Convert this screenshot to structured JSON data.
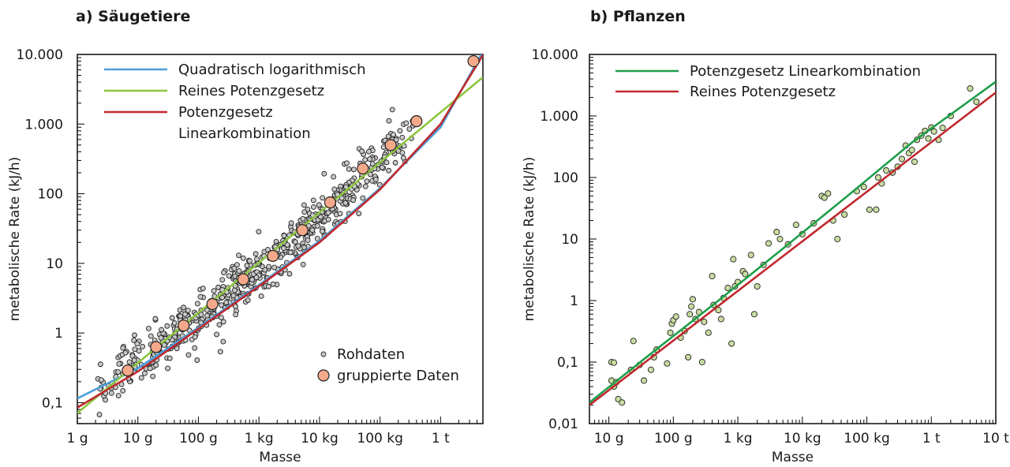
{
  "chart_data": [
    {
      "id": "a",
      "type": "scatter",
      "title": "a) Säugetiere",
      "xlabel": "Masse",
      "ylabel": "metabolische Rate  (kJ/h)",
      "x_scale": "log",
      "y_scale": "log",
      "x_unit": "g",
      "y_unit": "kJ/h",
      "xlim": [
        1,
        5000000
      ],
      "ylim": [
        0.05,
        10000
      ],
      "x_ticks": [
        {
          "value": 1,
          "label": "1 g"
        },
        {
          "value": 10,
          "label": "10 g"
        },
        {
          "value": 100,
          "label": "100 g"
        },
        {
          "value": 1000,
          "label": "1 kg"
        },
        {
          "value": 10000,
          "label": "10 kg"
        },
        {
          "value": 100000,
          "label": "100 kg"
        },
        {
          "value": 1000000,
          "label": "1 t"
        }
      ],
      "y_ticks": [
        {
          "value": 0.1,
          "label": "0,1"
        },
        {
          "value": 1,
          "label": "1"
        },
        {
          "value": 10,
          "label": "10"
        },
        {
          "value": 100,
          "label": "100"
        },
        {
          "value": 1000,
          "label": "1.000"
        },
        {
          "value": 10000,
          "label": "10.000"
        }
      ],
      "grid": false,
      "legend_lines_position": "top-left",
      "legend_points_position": "bottom-right",
      "lines": [
        {
          "name": "Quadratisch logarithmisch",
          "color": "#4a9fd8",
          "points": [
            [
              1,
              0.115
            ],
            [
              10,
              0.31
            ],
            [
              100,
              1.2
            ],
            [
              1000,
              4.9
            ],
            [
              10000,
              21
            ],
            [
              100000,
              120
            ],
            [
              1000000,
              900
            ],
            [
              5000000,
              11000
            ]
          ]
        },
        {
          "name": "Reines Potenzgesetz",
          "color": "#8cc63f",
          "points": [
            [
              1,
              0.071
            ],
            [
              5000000,
              4700
            ]
          ]
        },
        {
          "name": "Potenzgesetz\nLinearkombination",
          "color": "#c0282d",
          "points": [
            [
              1,
              0.085
            ],
            [
              10,
              0.28
            ],
            [
              100,
              1.15
            ],
            [
              1000,
              4.7
            ],
            [
              10000,
              20
            ],
            [
              100000,
              115
            ],
            [
              1000000,
              1000
            ],
            [
              5000000,
              9800
            ]
          ]
        }
      ],
      "point_series": [
        {
          "name": "Rohdaten",
          "marker": "small-circle",
          "color": "#c8c8c8",
          "count": 600,
          "trend": [
            [
              2,
              0.14
            ],
            [
              20,
              0.6
            ],
            [
              200,
              2.6
            ],
            [
              2000,
              12
            ],
            [
              20000,
              75
            ],
            [
              200000,
              600
            ]
          ],
          "x_range": [
            2,
            400000
          ],
          "spread_log10": 0.18
        },
        {
          "name": "gruppierte Daten",
          "marker": "large-circle",
          "color": "#f4a98a",
          "points": [
            [
              6.8,
              0.29
            ],
            [
              20,
              0.63
            ],
            [
              57,
              1.28
            ],
            [
              170,
              2.6
            ],
            [
              550,
              5.9
            ],
            [
              1700,
              12.8
            ],
            [
              5200,
              30
            ],
            [
              15000,
              75
            ],
            [
              52000,
              230
            ],
            [
              150000,
              500
            ],
            [
              400000,
              1100
            ],
            [
              3500000,
              8000
            ]
          ]
        }
      ]
    },
    {
      "id": "b",
      "type": "scatter",
      "title": "b) Pflanzen",
      "xlabel": "Masse",
      "ylabel": "metabolische Rate  (kJ/h)",
      "x_scale": "log",
      "y_scale": "log",
      "x_unit": "g",
      "y_unit": "kJ/h",
      "xlim": [
        5,
        10000000
      ],
      "ylim": [
        0.01,
        10000
      ],
      "x_ticks": [
        {
          "value": 10,
          "label": "10 g"
        },
        {
          "value": 100,
          "label": "100 g"
        },
        {
          "value": 1000,
          "label": "1 kg"
        },
        {
          "value": 10000,
          "label": "10 kg"
        },
        {
          "value": 100000,
          "label": "100 kg"
        },
        {
          "value": 1000000,
          "label": "1 t"
        },
        {
          "value": 10000000,
          "label": "10 t"
        }
      ],
      "y_ticks": [
        {
          "value": 0.01,
          "label": "0,01"
        },
        {
          "value": 0.1,
          "label": "0,1"
        },
        {
          "value": 1,
          "label": "1"
        },
        {
          "value": 10,
          "label": "10"
        },
        {
          "value": 100,
          "label": "100"
        },
        {
          "value": 1000,
          "label": "1.000"
        },
        {
          "value": 10000,
          "label": "10.000"
        }
      ],
      "grid": false,
      "legend_lines_position": "top-left",
      "lines": [
        {
          "name": "Potenzgesetz Linearkombination",
          "color": "#1e9e4a",
          "points": [
            [
              5,
              0.022
            ],
            [
              50,
              0.15
            ],
            [
              500,
              1.0
            ],
            [
              5000,
              7.0
            ],
            [
              50000,
              50
            ],
            [
              500000,
              370
            ],
            [
              10000000,
              3600
            ]
          ]
        },
        {
          "name": "Reines Potenzgesetz",
          "color": "#c0282d",
          "points": [
            [
              5,
              0.02
            ],
            [
              10000000,
              2400
            ]
          ]
        }
      ],
      "point_series": [
        {
          "name": "",
          "marker": "small-circle",
          "color": "#c8dca0",
          "points": [
            [
              11,
              0.1
            ],
            [
              12,
              0.098
            ],
            [
              11,
              0.05
            ],
            [
              12,
              0.04
            ],
            [
              14,
              0.025
            ],
            [
              16,
              0.022
            ],
            [
              13,
              0.047
            ],
            [
              22,
              0.075
            ],
            [
              24,
              0.22
            ],
            [
              30,
              0.09
            ],
            [
              35,
              0.05
            ],
            [
              45,
              0.075
            ],
            [
              50,
              0.12
            ],
            [
              55,
              0.16
            ],
            [
              80,
              0.095
            ],
            [
              90,
              0.3
            ],
            [
              95,
              0.42
            ],
            [
              100,
              0.48
            ],
            [
              110,
              0.55
            ],
            [
              130,
              0.25
            ],
            [
              150,
              0.32
            ],
            [
              170,
              0.12
            ],
            [
              180,
              0.6
            ],
            [
              190,
              0.8
            ],
            [
              200,
              1.05
            ],
            [
              220,
              0.5
            ],
            [
              250,
              0.65
            ],
            [
              280,
              0.1
            ],
            [
              300,
              0.45
            ],
            [
              350,
              0.3
            ],
            [
              400,
              2.5
            ],
            [
              420,
              0.85
            ],
            [
              500,
              0.7
            ],
            [
              550,
              0.5
            ],
            [
              600,
              1.1
            ],
            [
              700,
              1.6
            ],
            [
              800,
              0.2
            ],
            [
              850,
              4.7
            ],
            [
              900,
              1.7
            ],
            [
              1000,
              2.0
            ],
            [
              1200,
              3.0
            ],
            [
              1300,
              2.7
            ],
            [
              1600,
              5.5
            ],
            [
              1800,
              0.6
            ],
            [
              2000,
              1.7
            ],
            [
              2500,
              3.8
            ],
            [
              3000,
              8.5
            ],
            [
              4000,
              13
            ],
            [
              4500,
              10
            ],
            [
              6000,
              8.2
            ],
            [
              8000,
              17
            ],
            [
              10000,
              12
            ],
            [
              15000,
              18
            ],
            [
              20000,
              50
            ],
            [
              22000,
              47
            ],
            [
              25000,
              55
            ],
            [
              30000,
              20
            ],
            [
              35000,
              10
            ],
            [
              45000,
              25
            ],
            [
              70000,
              60
            ],
            [
              90000,
              70
            ],
            [
              110000,
              30
            ],
            [
              140000,
              30
            ],
            [
              150000,
              100
            ],
            [
              170000,
              80
            ],
            [
              200000,
              130
            ],
            [
              250000,
              120
            ],
            [
              300000,
              150
            ],
            [
              350000,
              200
            ],
            [
              400000,
              330
            ],
            [
              450000,
              250
            ],
            [
              500000,
              280
            ],
            [
              550000,
              180
            ],
            [
              600000,
              410
            ],
            [
              700000,
              480
            ],
            [
              800000,
              570
            ],
            [
              900000,
              430
            ],
            [
              1000000,
              650
            ],
            [
              1100000,
              560
            ],
            [
              1300000,
              410
            ],
            [
              1500000,
              640
            ],
            [
              2000000,
              1000
            ],
            [
              4000000,
              2800
            ],
            [
              5000000,
              1700
            ]
          ]
        }
      ]
    }
  ]
}
